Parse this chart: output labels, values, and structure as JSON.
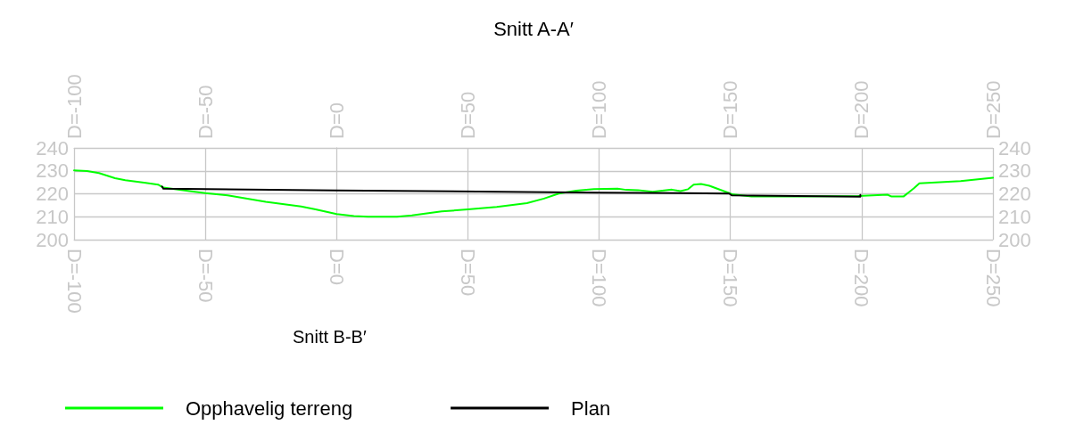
{
  "chart_data": {
    "type": "line",
    "title": "Snitt A-A′",
    "annotations": [
      "Snitt B-B′"
    ],
    "xlim": [
      -100,
      250
    ],
    "xticks": [
      {
        "value": -100,
        "label": "D=-100"
      },
      {
        "value": -50,
        "label": "D=-50"
      },
      {
        "value": 0,
        "label": "D=0"
      },
      {
        "value": 50,
        "label": "D=50"
      },
      {
        "value": 100,
        "label": "D=100"
      },
      {
        "value": 150,
        "label": "D=150"
      },
      {
        "value": 200,
        "label": "D=200"
      },
      {
        "value": 250,
        "label": "D=250"
      }
    ],
    "x2lim": [
      -100,
      250
    ],
    "x2ticks": [
      {
        "value": -100,
        "label": "D=-100"
      },
      {
        "value": -50,
        "label": "D=-50"
      },
      {
        "value": 0,
        "label": "D=0"
      },
      {
        "value": 50,
        "label": "D=50"
      },
      {
        "value": 100,
        "label": "D=100"
      },
      {
        "value": 150,
        "label": "D=150"
      },
      {
        "value": 200,
        "label": "D=200"
      },
      {
        "value": 250,
        "label": "D=250"
      }
    ],
    "ylim": [
      200,
      240
    ],
    "yticks": [
      200,
      210,
      220,
      230,
      240
    ],
    "y2lim": [
      200,
      240
    ],
    "y2ticks": [
      200,
      210,
      220,
      230,
      240
    ],
    "grid": true,
    "legend": "bottom",
    "marker": "none",
    "line_style": "solid",
    "series": [
      {
        "name": "Opphavelig terreng",
        "color": "#00ff00",
        "x": [
          -100,
          -95,
          -90.5,
          -84.4,
          -80.5,
          -72.7,
          -68,
          -66,
          -56,
          -50,
          -41.5,
          -27,
          -13.5,
          -8,
          0,
          6.6,
          12,
          23,
          28.7,
          40,
          50,
          61,
          72.5,
          79,
          84.6,
          91.3,
          98,
          107,
          110.4,
          114.8,
          120.4,
          127.7,
          131,
          133.9,
          136,
          138.8,
          142,
          150,
          150.5,
          158,
          176,
          198.6,
          209.8,
          211.4,
          215.9,
          219.8,
          222,
          237.7,
          250
        ],
        "values": [
          230.2,
          229.9,
          229.0,
          226.8,
          225.9,
          224.8,
          224.0,
          222.7,
          221.2,
          220.3,
          219.3,
          216.5,
          214.5,
          213.2,
          211.2,
          210.3,
          210.0,
          210.0,
          210.6,
          212.3,
          213.2,
          214.3,
          215.9,
          217.9,
          220.1,
          221.4,
          222.0,
          222.2,
          221.7,
          221.6,
          220.9,
          221.8,
          221.2,
          222.0,
          224.0,
          224.3,
          223.5,
          220.1,
          219.8,
          218.8,
          218.8,
          219.0,
          219.6,
          218.8,
          218.8,
          222.3,
          224.6,
          225.5,
          227.0
        ]
      },
      {
        "name": "Plan",
        "color": "#000000",
        "x": [
          -66.5,
          -66,
          0,
          100,
          149.5,
          150.5,
          199.5,
          199.5
        ],
        "values": [
          223.2,
          222.2,
          221.5,
          220.5,
          220.1,
          219.3,
          218.7,
          219.5
        ]
      }
    ]
  }
}
